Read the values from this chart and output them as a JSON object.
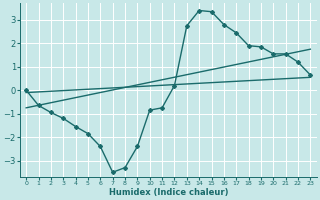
{
  "xlabel": "Humidex (Indice chaleur)",
  "xlim": [
    -0.5,
    23.5
  ],
  "ylim": [
    -3.7,
    3.7
  ],
  "yticks": [
    -3,
    -2,
    -1,
    0,
    1,
    2,
    3
  ],
  "xticks": [
    0,
    1,
    2,
    3,
    4,
    5,
    6,
    7,
    8,
    9,
    10,
    11,
    12,
    13,
    14,
    15,
    16,
    17,
    18,
    19,
    20,
    21,
    22,
    23
  ],
  "background_color": "#c8e8e8",
  "grid_color": "#ffffff",
  "line_color": "#1a6b6b",
  "main_series": {
    "x": [
      0,
      1,
      2,
      3,
      4,
      5,
      6,
      7,
      8,
      9,
      10,
      11,
      12,
      13,
      14,
      15,
      16,
      17,
      18,
      19,
      20,
      21,
      22,
      23
    ],
    "y": [
      0.0,
      -0.65,
      -0.95,
      -1.2,
      -1.55,
      -1.85,
      -2.4,
      -3.5,
      -3.3,
      -2.4,
      -0.85,
      -0.75,
      0.2,
      2.75,
      3.4,
      3.35,
      2.8,
      2.45,
      1.9,
      1.85,
      1.55,
      1.55,
      1.2,
      0.65
    ]
  },
  "trend1": {
    "x": [
      0,
      23
    ],
    "y": [
      -0.75,
      1.75
    ]
  },
  "trend2": {
    "x": [
      0,
      23
    ],
    "y": [
      -0.1,
      0.55
    ]
  }
}
